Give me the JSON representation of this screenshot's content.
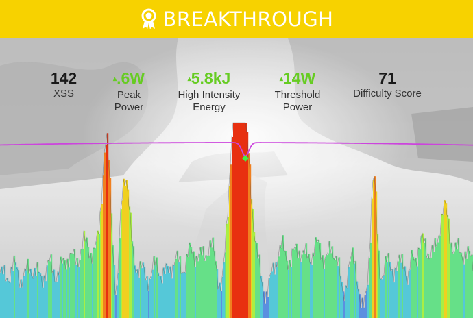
{
  "banner": {
    "title": "BREAKTHROUGH",
    "icon": "award-ribbon-icon",
    "color": "#f7d200"
  },
  "metrics": [
    {
      "value": "142",
      "label": "XSS",
      "highlight": false
    },
    {
      "value": ".6W",
      "label": "Peak Power",
      "label_lines": [
        "Peak",
        "Power"
      ],
      "highlight": true
    },
    {
      "value": "5.8kJ",
      "label": "High Intensity Energy",
      "label_lines": [
        "High Intensity",
        "Energy"
      ],
      "highlight": true
    },
    {
      "value": "14W",
      "label": "Threshold Power",
      "label_lines": [
        "Threshold",
        "Power"
      ],
      "highlight": true
    },
    {
      "value": "71",
      "label": "Difficulty Score",
      "highlight": false
    }
  ],
  "colors": {
    "highlight_value": "#66cc22",
    "curve": "#cc44dd",
    "marker": "#44ee44"
  },
  "chart": {
    "type": "area",
    "color_scale": [
      "#5b8fe0",
      "#55c8d8",
      "#66e088",
      "#aaee44",
      "#f0d020",
      "#f08020",
      "#e83010"
    ]
  }
}
